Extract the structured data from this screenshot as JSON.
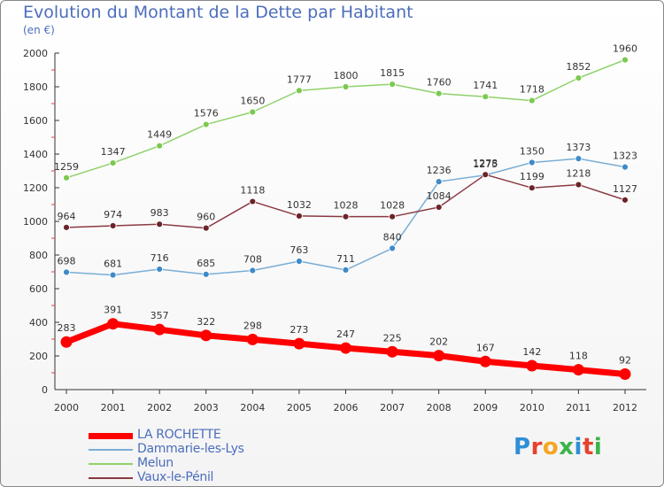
{
  "title": "Evolution du Montant de la Dette par Habitant",
  "subtitle": "(en €)",
  "logo": {
    "letters": [
      {
        "ch": "P",
        "color": "#2f8fd6"
      },
      {
        "ch": "r",
        "color": "#e8412c"
      },
      {
        "ch": "o",
        "color": "#f5a623"
      },
      {
        "ch": "x",
        "color": "#3cb34a"
      },
      {
        "ch": "i",
        "color": "#2f8fd6"
      },
      {
        "ch": "t",
        "color": "#e8412c"
      },
      {
        "ch": "i",
        "color": "#3cb34a"
      }
    ]
  },
  "chart_data": {
    "type": "line",
    "x": [
      "2000",
      "2001",
      "2002",
      "2003",
      "2004",
      "2005",
      "2006",
      "2007",
      "2008",
      "2009",
      "2010",
      "2011",
      "2012"
    ],
    "ylim": [
      0,
      2000
    ],
    "yticks": [
      0,
      200,
      400,
      600,
      800,
      1000,
      1200,
      1400,
      1600,
      1800,
      2000
    ],
    "grid": false,
    "legend_position": "bottom-left",
    "series": [
      {
        "name": "Melun",
        "color": "#8fd16a",
        "dot": "#7cc94f",
        "width": 1.5,
        "marker": 3.5,
        "values": [
          1259,
          1347,
          1449,
          1576,
          1650,
          1777,
          1800,
          1815,
          1760,
          1741,
          1718,
          1852,
          1960
        ]
      },
      {
        "name": "Dammarie-les-Lys",
        "color": "#7aaed6",
        "dot": "#3f8ac9",
        "width": 1.5,
        "marker": 3.5,
        "values": [
          698,
          681,
          716,
          685,
          708,
          763,
          711,
          840,
          1236,
          1275,
          1350,
          1373,
          1323
        ]
      },
      {
        "name": "Vaux-le-Pénil",
        "color": "#8b3a44",
        "dot": "#6b2429",
        "width": 1.5,
        "marker": 3.5,
        "values": [
          964,
          974,
          983,
          960,
          1118,
          1032,
          1028,
          1028,
          1084,
          1278,
          1199,
          1218,
          1127
        ]
      },
      {
        "name": "LA ROCHETTE",
        "color": "#ff0000",
        "dot": "#ff0000",
        "width": 7,
        "marker": 6.5,
        "values": [
          283,
          391,
          357,
          322,
          298,
          273,
          247,
          225,
          202,
          167,
          142,
          118,
          92
        ]
      }
    ],
    "legend_order": [
      "LA ROCHETTE",
      "Dammarie-les-Lys",
      "Melun",
      "Vaux-le-Pénil"
    ]
  }
}
